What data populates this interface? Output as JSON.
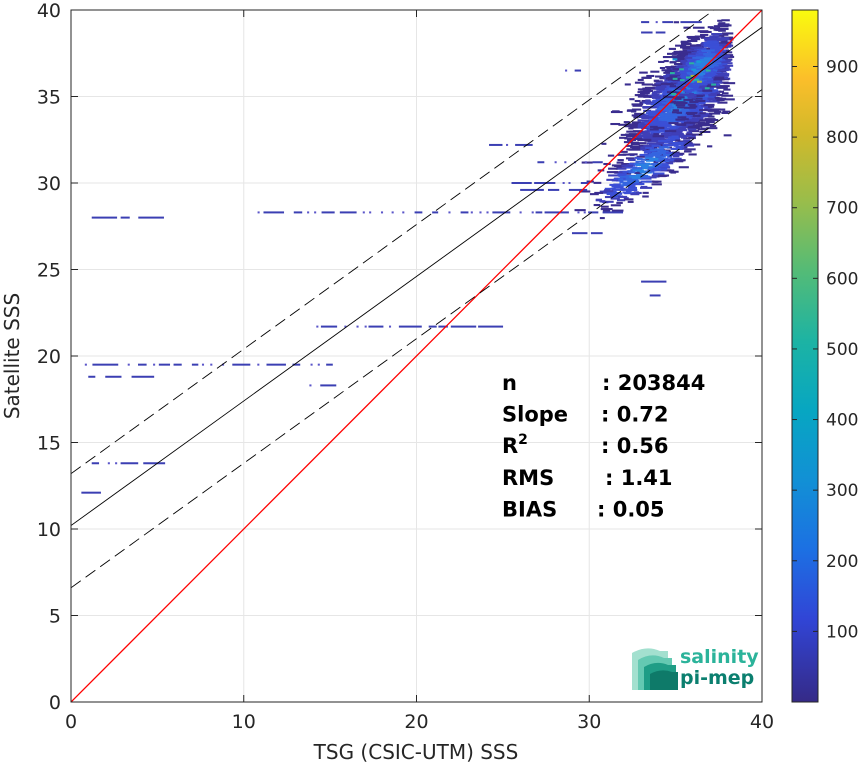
{
  "chart_data": {
    "type": "heatmap",
    "title": "",
    "xlabel": "TSG (CSIC-UTM) SSS",
    "ylabel": "Satellite SSS",
    "xlim": [
      0,
      40
    ],
    "ylim": [
      0,
      40
    ],
    "xticks": [
      "0",
      "10",
      "20",
      "30",
      "40"
    ],
    "yticks": [
      "0",
      "5",
      "10",
      "15",
      "20",
      "25",
      "30",
      "35",
      "40"
    ],
    "grid": true,
    "colormap": "parula",
    "colorbar": {
      "min": 0,
      "max": 980,
      "ticks": [
        "100",
        "200",
        "300",
        "400",
        "500",
        "600",
        "700",
        "800",
        "900"
      ]
    },
    "lines": [
      {
        "name": "1:1",
        "color": "#ff0000",
        "style": "solid",
        "slope": 1.0,
        "intercept": 0.0
      },
      {
        "name": "fit",
        "color": "#000000",
        "style": "solid",
        "slope": 0.72,
        "intercept": 10.2
      },
      {
        "name": "fit+",
        "color": "#000000",
        "style": "dashed",
        "slope": 0.72,
        "intercept": 13.2
      },
      {
        "name": "fit-",
        "color": "#000000",
        "style": "dashed",
        "slope": 0.72,
        "intercept": 6.6
      }
    ],
    "clusters": [
      {
        "cx": 35.2,
        "cy": 35.0,
        "sx": 1.5,
        "sy": 2.0,
        "n": 1600,
        "dense": true
      },
      {
        "cx": 33.0,
        "cy": 31.0,
        "sx": 1.6,
        "sy": 1.2,
        "n": 320,
        "dense": false
      },
      {
        "cx": 36.3,
        "cy": 36.8,
        "sx": 0.9,
        "sy": 1.5,
        "n": 500,
        "dense": true
      }
    ],
    "streaks": [
      {
        "y": 28.0,
        "x0": 1.2,
        "x1": 4.2
      },
      {
        "y": 28.3,
        "x0": 10.8,
        "x1": 31.0
      },
      {
        "y": 21.7,
        "x0": 14.2,
        "x1": 24.0
      },
      {
        "y": 19.5,
        "x0": 0.8,
        "x1": 15.2
      },
      {
        "y": 18.8,
        "x0": 1.0,
        "x1": 4.8
      },
      {
        "y": 18.3,
        "x0": 13.8,
        "x1": 15.6
      },
      {
        "y": 13.8,
        "x0": 1.2,
        "x1": 4.2
      },
      {
        "y": 12.1,
        "x0": 0.6,
        "x1": 1.0
      },
      {
        "y": 32.2,
        "x0": 24.2,
        "x1": 26.0
      },
      {
        "y": 36.5,
        "x0": 28.6,
        "x1": 29.3
      },
      {
        "y": 27.1,
        "x0": 29.0,
        "x1": 31.0
      },
      {
        "y": 30.0,
        "x0": 25.5,
        "x1": 30.0
      },
      {
        "y": 29.6,
        "x0": 26.0,
        "x1": 29.0
      },
      {
        "y": 31.2,
        "x0": 27.0,
        "x1": 30.5
      },
      {
        "y": 24.3,
        "x0": 33.0,
        "x1": 33.3
      },
      {
        "y": 23.5,
        "x0": 33.5,
        "x1": 33.7
      },
      {
        "y": 39.3,
        "x0": 33.0,
        "x1": 36.0
      },
      {
        "y": 38.7,
        "x0": 33.0,
        "x1": 34.0
      }
    ],
    "annotations": {
      "stats": [
        {
          "label": "n",
          "sup": "",
          "value": ": 203844"
        },
        {
          "label": "Slope",
          "sup": "",
          "value": ": 0.72"
        },
        {
          "label": "R",
          "sup": "2",
          "value": ": 0.56"
        },
        {
          "label": "RMS",
          "sup": "",
          "value": ": 1.41"
        },
        {
          "label": "BIAS",
          "sup": "",
          "value": ": 0.05"
        }
      ]
    }
  },
  "logo": {
    "line1": "salinity",
    "line2": "pi-mep",
    "color1": "#2bb39a",
    "color2": "#0b7f6f"
  }
}
